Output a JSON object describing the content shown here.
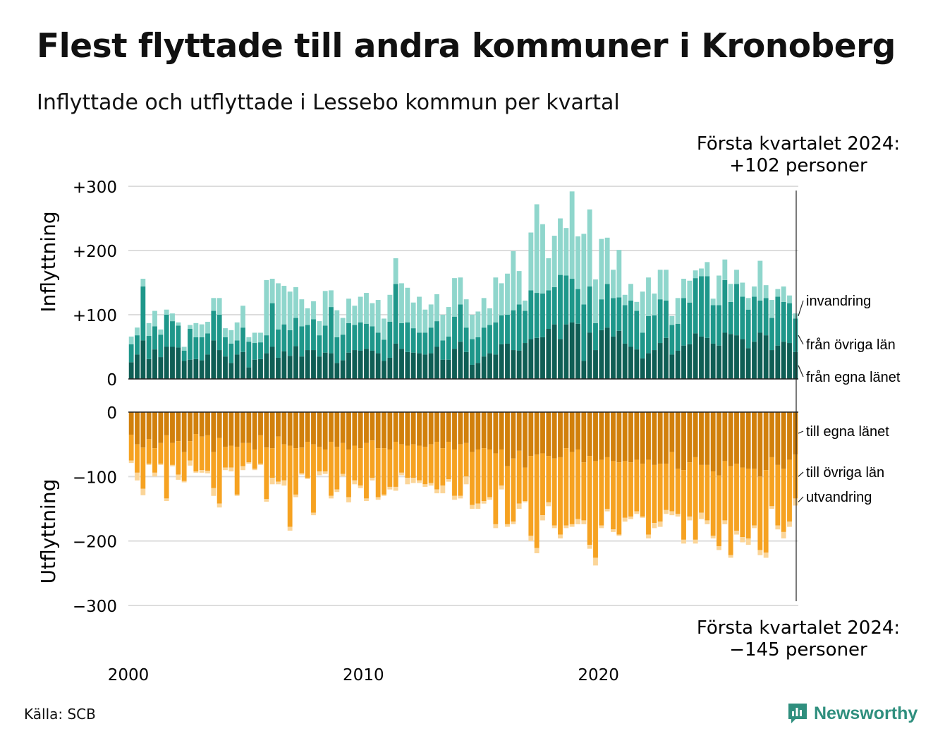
{
  "header": {
    "title": "Flest flyttade till andra kommuner i Kronoberg",
    "subtitle": "Inflyttade och utflyttade i Lessebo kommun per kvartal"
  },
  "footer": {
    "source": "Källa: SCB",
    "logo_text": "Newsworthy"
  },
  "annotations": {
    "top_line1": "Första kvartalet 2024:",
    "top_line2": "+102 personer",
    "bottom_line1": "Första kvartalet 2024:",
    "bottom_line2": "−145 personer"
  },
  "colors": {
    "in_egna": "#0f5e55",
    "in_ovriga": "#1e978a",
    "in_invandring": "#8fd6cc",
    "out_egna": "#d1800c",
    "out_ovriga": "#f6a221",
    "out_utvandring": "#fbd598",
    "grid": "#dddddd",
    "axis": "#222222"
  },
  "chart_data": [
    {
      "type": "bar",
      "stacked": true,
      "ylabel": "Inflyttning",
      "ylim": [
        0,
        300
      ],
      "yticks": [
        0,
        100,
        200,
        300
      ],
      "ytick_labels": [
        "0",
        "+100",
        "+200",
        "+300"
      ],
      "xticks": [
        2000,
        2010,
        2020
      ],
      "x_start": "2000 Q1",
      "x_end": "2024 Q1",
      "series": [
        {
          "name": "från egna länet",
          "values": [
            26,
            38,
            60,
            31,
            46,
            34,
            50,
            50,
            49,
            28,
            30,
            31,
            29,
            38,
            60,
            45,
            35,
            25,
            38,
            42,
            18,
            30,
            31,
            40,
            50,
            33,
            43,
            36,
            51,
            35,
            45,
            45,
            35,
            41,
            40,
            25,
            29,
            41,
            45,
            44,
            47,
            44,
            40,
            28,
            33,
            55,
            47,
            42,
            41,
            40,
            38,
            40,
            50,
            30,
            30,
            47,
            58,
            42,
            22,
            25,
            35,
            40,
            38,
            54,
            55,
            45,
            44,
            56,
            62,
            64,
            65,
            78,
            85,
            62,
            85,
            88,
            86,
            28,
            72,
            45,
            76,
            80,
            66,
            75,
            55,
            50,
            46,
            32,
            40,
            45,
            56,
            64,
            38,
            44,
            52,
            54,
            71,
            66,
            64,
            55,
            52,
            72,
            70,
            68,
            62,
            48,
            58,
            72,
            68,
            45,
            52,
            58,
            56,
            42
          ]
        },
        {
          "name": "från övriga län",
          "values": [
            28,
            30,
            84,
            36,
            36,
            35,
            50,
            40,
            34,
            16,
            48,
            34,
            36,
            33,
            46,
            55,
            30,
            30,
            22,
            38,
            40,
            26,
            26,
            28,
            68,
            44,
            42,
            40,
            44,
            47,
            39,
            48,
            33,
            42,
            72,
            40,
            40,
            46,
            39,
            44,
            39,
            38,
            32,
            33,
            56,
            93,
            40,
            46,
            38,
            32,
            34,
            40,
            40,
            30,
            36,
            50,
            58,
            38,
            40,
            40,
            45,
            44,
            50,
            45,
            45,
            62,
            72,
            50,
            76,
            70,
            68,
            60,
            58,
            100,
            76,
            68,
            54,
            88,
            72,
            42,
            48,
            68,
            60,
            52,
            60,
            72,
            60,
            40,
            58,
            54,
            68,
            58,
            46,
            42,
            74,
            65,
            86,
            94,
            96,
            60,
            63,
            82,
            50,
            80,
            66,
            60,
            70,
            50,
            58,
            50,
            76,
            62,
            62,
            52
          ]
        },
        {
          "name": "invandring",
          "values": [
            12,
            12,
            12,
            20,
            24,
            8,
            8,
            12,
            5,
            6,
            6,
            22,
            20,
            18,
            20,
            26,
            14,
            21,
            28,
            34,
            7,
            16,
            15,
            86,
            38,
            72,
            60,
            60,
            48,
            42,
            26,
            28,
            22,
            54,
            26,
            42,
            26,
            38,
            30,
            40,
            48,
            36,
            51,
            33,
            42,
            40,
            62,
            54,
            40,
            56,
            36,
            36,
            42,
            40,
            46,
            60,
            42,
            44,
            38,
            40,
            46,
            26,
            70,
            50,
            64,
            92,
            52,
            16,
            90,
            138,
            108,
            50,
            80,
            88,
            74,
            136,
            82,
            110,
            120,
            68,
            94,
            72,
            44,
            74,
            16,
            26,
            14,
            64,
            60,
            34,
            46,
            48,
            14,
            40,
            30,
            34,
            12,
            12,
            22,
            10,
            46,
            32,
            28,
            22,
            22,
            18,
            16,
            62,
            20,
            28,
            12,
            24,
            12,
            8
          ]
        },
        {
          "name": "total",
          "values": [
            66,
            80,
            156,
            87,
            106,
            77,
            108,
            102,
            88,
            50,
            84,
            87,
            85,
            89,
            126,
            126,
            79,
            76,
            88,
            114,
            65,
            72,
            72,
            154,
            156,
            149,
            145,
            136,
            143,
            124,
            110,
            121,
            90,
            137,
            138,
            107,
            95,
            125,
            114,
            128,
            134,
            118,
            123,
            94,
            131,
            188,
            149,
            142,
            119,
            128,
            108,
            116,
            132,
            100,
            112,
            157,
            158,
            124,
            100,
            105,
            126,
            110,
            158,
            149,
            164,
            199,
            168,
            122,
            228,
            272,
            241,
            188,
            223,
            250,
            235,
            292,
            222,
            176,
            264,
            155,
            218,
            220,
            170,
            201,
            131,
            148,
            120,
            136,
            158,
            133,
            170,
            170,
            98,
            126,
            156,
            153,
            169,
            172,
            182,
            125,
            161,
            186,
            148,
            170,
            150,
            126,
            144,
            184,
            146,
            123,
            140,
            144,
            130,
            102
          ]
        }
      ]
    },
    {
      "type": "bar",
      "stacked": true,
      "ylabel": "Utflyttning",
      "ylim": [
        -300,
        0
      ],
      "yticks": [
        0,
        -100,
        -200,
        -300
      ],
      "ytick_labels": [
        "0",
        "−100",
        "−200",
        "−300"
      ],
      "xticks": [
        2000,
        2010,
        2020
      ],
      "x_start": "2000 Q1",
      "x_end": "2024 Q1",
      "series": [
        {
          "name": "till egna länet",
          "values": [
            -35,
            -50,
            -55,
            -42,
            -56,
            -48,
            -36,
            -48,
            -45,
            -62,
            -45,
            -34,
            -38,
            -36,
            -62,
            -40,
            -54,
            -52,
            -54,
            -48,
            -48,
            -58,
            -36,
            -55,
            -56,
            -38,
            -50,
            -52,
            -56,
            -55,
            -46,
            -50,
            -54,
            -58,
            -46,
            -54,
            -48,
            -58,
            -52,
            -56,
            -48,
            -44,
            -56,
            -56,
            -58,
            -46,
            -50,
            -52,
            -50,
            -52,
            -54,
            -50,
            -46,
            -56,
            -46,
            -58,
            -50,
            -48,
            -62,
            -58,
            -56,
            -58,
            -64,
            -58,
            -84,
            -72,
            -60,
            -86,
            -68,
            -66,
            -64,
            -68,
            -72,
            -70,
            -56,
            -62,
            -58,
            -78,
            -68,
            -76,
            -74,
            -70,
            -76,
            -78,
            -76,
            -78,
            -74,
            -80,
            -74,
            -82,
            -80,
            -80,
            -62,
            -88,
            -90,
            -78,
            -70,
            -82,
            -82,
            -92,
            -98,
            -76,
            -84,
            -80,
            -86,
            -88,
            -88,
            -100,
            -90,
            -70,
            -82,
            -88,
            -74,
            -66
          ]
        },
        {
          "name": "till övriga län",
          "values": [
            -40,
            -44,
            -64,
            -38,
            -38,
            -32,
            -98,
            -34,
            -52,
            -45,
            -30,
            -58,
            -52,
            -55,
            -56,
            -102,
            -32,
            -34,
            -74,
            -36,
            -30,
            -30,
            -44,
            -80,
            -46,
            -70,
            -56,
            -126,
            -72,
            -40,
            -56,
            -106,
            -38,
            -34,
            -84,
            -66,
            -48,
            -74,
            -54,
            -58,
            -86,
            -58,
            -76,
            -72,
            -58,
            -70,
            -44,
            -50,
            -52,
            -54,
            -58,
            -60,
            -74,
            -58,
            -58,
            -72,
            -80,
            -52,
            -82,
            -84,
            -82,
            -74,
            -110,
            -56,
            -90,
            -98,
            -82,
            -52,
            -124,
            -145,
            -96,
            -72,
            -104,
            -120,
            -120,
            -112,
            -108,
            -90,
            -138,
            -150,
            -102,
            -80,
            -106,
            -112,
            -88,
            -84,
            -80,
            -82,
            -116,
            -90,
            -90,
            -72,
            -92,
            -70,
            -108,
            -84,
            -128,
            -74,
            -86,
            -100,
            -110,
            -92,
            -138,
            -104,
            -108,
            -108,
            -88,
            -114,
            -128,
            -76,
            -94,
            -98,
            -96,
            -68
          ]
        },
        {
          "name": "utvandring",
          "values": [
            -4,
            -12,
            -10,
            -2,
            -6,
            -2,
            -4,
            -2,
            -8,
            -2,
            -8,
            -2,
            -4,
            -4,
            -12,
            -6,
            -4,
            -6,
            -2,
            -6,
            -2,
            -2,
            -2,
            -4,
            -10,
            -4,
            -8,
            -6,
            -4,
            -2,
            -2,
            -4,
            -6,
            -4,
            -4,
            -4,
            -4,
            -8,
            -6,
            -4,
            -4,
            -4,
            -4,
            -2,
            -4,
            -6,
            -4,
            -10,
            -8,
            -4,
            -4,
            -4,
            -6,
            -12,
            -4,
            -6,
            -4,
            -12,
            -6,
            -8,
            -4,
            -4,
            -6,
            -6,
            -4,
            -4,
            -8,
            -2,
            -8,
            -8,
            -8,
            -6,
            -4,
            -6,
            -4,
            -4,
            -8,
            -6,
            -6,
            -12,
            -4,
            -4,
            -4,
            -2,
            -6,
            -4,
            -4,
            -2,
            -6,
            -8,
            -8,
            -6,
            -6,
            -4,
            -6,
            -6,
            -6,
            -10,
            -6,
            -4,
            -6,
            -6,
            -4,
            -6,
            -8,
            -10,
            -4,
            -8,
            -8,
            -4,
            -6,
            -10,
            -8,
            -11
          ]
        },
        {
          "name": "total",
          "values": [
            -79,
            -106,
            -129,
            -82,
            -100,
            -82,
            -138,
            -84,
            -105,
            -109,
            -83,
            -94,
            -94,
            -95,
            -130,
            -148,
            -90,
            -92,
            -130,
            -90,
            -80,
            -90,
            -82,
            -139,
            -112,
            -112,
            -114,
            -184,
            -132,
            -97,
            -104,
            -160,
            -98,
            -96,
            -134,
            -124,
            -100,
            -140,
            -112,
            -118,
            -138,
            -106,
            -136,
            -130,
            -120,
            -122,
            -98,
            -112,
            -110,
            -110,
            -116,
            -114,
            -126,
            -126,
            -108,
            -136,
            -134,
            -112,
            -150,
            -150,
            -142,
            -136,
            -180,
            -120,
            -178,
            -174,
            -150,
            -140,
            -200,
            -219,
            -168,
            -146,
            -180,
            -196,
            -180,
            -178,
            -174,
            -174,
            -212,
            -238,
            -180,
            -154,
            -186,
            -192,
            -170,
            -166,
            -158,
            -164,
            -196,
            -180,
            -178,
            -158,
            -160,
            -162,
            -204,
            -168,
            -204,
            -166,
            -174,
            -196,
            -214,
            -174,
            -226,
            -190,
            -202,
            -206,
            -180,
            -222,
            -226,
            -150,
            -182,
            -196,
            -178,
            -145
          ]
        }
      ]
    }
  ]
}
